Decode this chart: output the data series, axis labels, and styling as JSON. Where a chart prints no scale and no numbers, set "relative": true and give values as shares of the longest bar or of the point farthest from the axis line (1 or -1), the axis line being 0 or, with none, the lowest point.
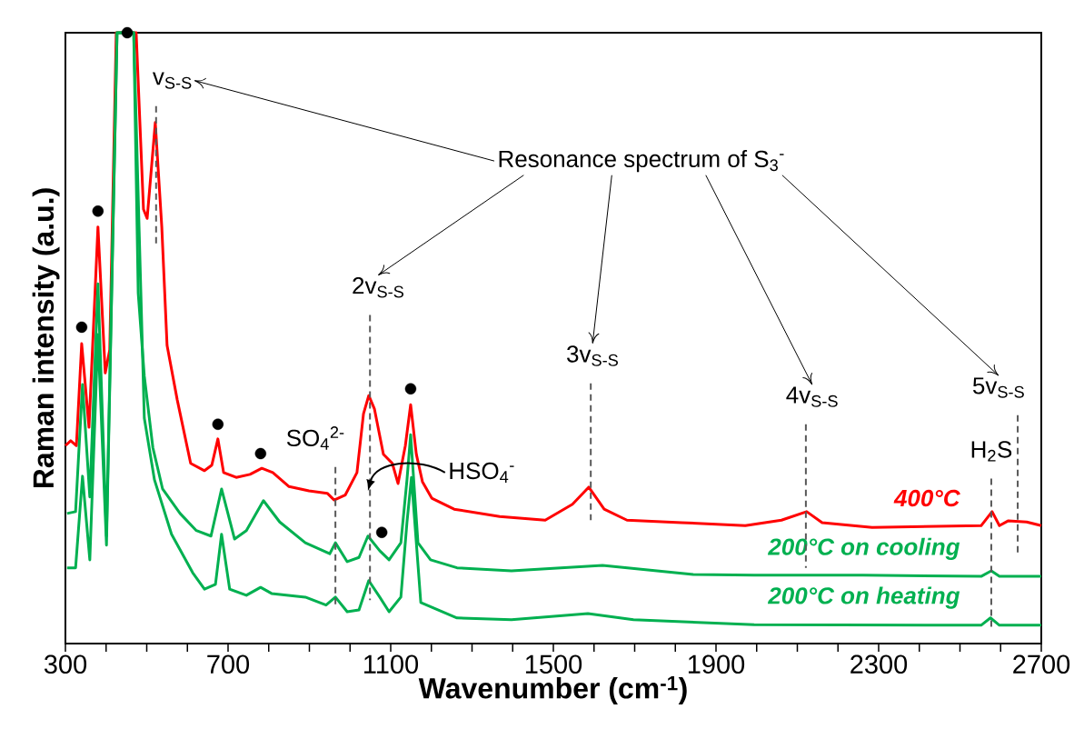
{
  "chart_data": {
    "type": "line",
    "relative": true,
    "xlabel": "Wavenumber (cm$^{-1}$)",
    "ylabel": "Raman intensity (a.u.)",
    "xlim": [
      300,
      2700
    ],
    "xticks": [
      300,
      {
        "value": 400,
        "label": null
      },
      {
        "value": 500,
        "label": null
      },
      {
        "value": 600,
        "label": null
      },
      700,
      {
        "value": 800,
        "label": null
      },
      {
        "value": 900,
        "label": null
      },
      {
        "value": 1000,
        "label": null
      },
      1100,
      {
        "value": 1200,
        "label": null
      },
      {
        "value": 1300,
        "label": null
      },
      {
        "value": 1400,
        "label": null
      },
      1500,
      {
        "value": 1600,
        "label": null
      },
      {
        "value": 1700,
        "label": null
      },
      {
        "value": 1800,
        "label": null
      },
      1900,
      {
        "value": 2000,
        "label": null
      },
      {
        "value": 2100,
        "label": null
      },
      {
        "value": 2200,
        "label": null
      },
      2300,
      {
        "value": 2400,
        "label": null
      },
      {
        "value": 2500,
        "label": null
      },
      {
        "value": 2600,
        "label": null
      },
      2700
    ],
    "legend": false,
    "grid": false,
    "marker": "none",
    "line_style": "solid",
    "series": [
      {
        "name": "400°C",
        "color": "#ff0000",
        "x": [
          300,
          313,
          327,
          340,
          358,
          380,
          398,
          409,
          425,
          474,
          492,
          501,
          521,
          537,
          550,
          575,
          608,
          642,
          660,
          675,
          689,
          720,
          754,
          783,
          810,
          850,
          899,
          944,
          961,
          988,
          1017,
          1033,
          1046,
          1060,
          1082,
          1104,
          1118,
          1136,
          1149,
          1163,
          1178,
          1201,
          1256,
          1368,
          1480,
          1547,
          1587,
          1625,
          1681,
          1815,
          1972,
          2061,
          2123,
          2161,
          2284,
          2552,
          2579,
          2597,
          2619,
          2664,
          2700
        ],
        "values": [
          0.324,
          0.332,
          0.324,
          0.491,
          0.354,
          0.682,
          0.443,
          0.481,
          1.0,
          1.0,
          0.711,
          0.696,
          0.853,
          0.682,
          0.488,
          0.399,
          0.295,
          0.283,
          0.292,
          0.335,
          0.28,
          0.272,
          0.277,
          0.287,
          0.28,
          0.257,
          0.25,
          0.246,
          0.235,
          0.243,
          0.28,
          0.376,
          0.406,
          0.384,
          0.31,
          0.295,
          0.262,
          0.324,
          0.391,
          0.31,
          0.265,
          0.238,
          0.22,
          0.208,
          0.202,
          0.228,
          0.256,
          0.22,
          0.202,
          0.198,
          0.193,
          0.202,
          0.216,
          0.198,
          0.19,
          0.193,
          0.216,
          0.193,
          0.201,
          0.199,
          0.193
        ]
      },
      {
        "name": "200°C on cooling",
        "color": "#00b050",
        "x": [
          304,
          325,
          342,
          360,
          380,
          401,
          427,
          468,
          479,
          494,
          515,
          539,
          582,
          622,
          658,
          684,
          716,
          745,
          787,
          827,
          890,
          950,
          964,
          993,
          1022,
          1044,
          1073,
          1096,
          1125,
          1140,
          1149,
          1167,
          1198,
          1263,
          1397,
          1621,
          1844,
          1994,
          2262,
          2552,
          2577,
          2597,
          2700
        ],
        "values": [
          0.213,
          0.216,
          0.424,
          0.24,
          0.589,
          0.176,
          1.0,
          1.0,
          0.574,
          0.438,
          0.321,
          0.253,
          0.213,
          0.185,
          0.176,
          0.253,
          0.171,
          0.185,
          0.234,
          0.199,
          0.165,
          0.147,
          0.165,
          0.134,
          0.141,
          0.176,
          0.152,
          0.137,
          0.165,
          0.268,
          0.342,
          0.165,
          0.137,
          0.124,
          0.119,
          0.128,
          0.113,
          0.112,
          0.112,
          0.11,
          0.119,
          0.11,
          0.11
        ]
      },
      {
        "name": "200°C on heating",
        "color": "#00b050",
        "x": [
          304,
          325,
          342,
          360,
          380,
          401,
          427,
          468,
          494,
          519,
          561,
          613,
          642,
          669,
          684,
          704,
          745,
          780,
          807,
          890,
          941,
          964,
          993,
          1022,
          1046,
          1073,
          1096,
          1125,
          1140,
          1151,
          1174,
          1263,
          1397,
          1585,
          1697,
          1994,
          2552,
          2575,
          2597,
          2700
        ],
        "values": [
          0.124,
          0.124,
          0.274,
          0.137,
          0.506,
          0.161,
          1.0,
          1.0,
          0.369,
          0.268,
          0.179,
          0.116,
          0.089,
          0.097,
          0.179,
          0.089,
          0.079,
          0.092,
          0.082,
          0.076,
          0.063,
          0.076,
          0.052,
          0.055,
          0.103,
          0.076,
          0.052,
          0.076,
          0.199,
          0.272,
          0.067,
          0.042,
          0.039,
          0.049,
          0.039,
          0.031,
          0.03,
          0.042,
          0.03,
          0.03
        ]
      },
      {
        "type": "scatter",
        "marker": "circle",
        "color": "#000000",
        "x": [
          340,
          380,
          452,
          675,
          780,
          1149,
          1078
        ],
        "values": [
          0.518,
          0.708,
          1.0,
          0.359,
          0.311,
          0.417,
          0.182
        ]
      }
    ],
    "ref_lines": [
      {
        "axis": "x",
        "value": 523,
        "label": "v$_{S-S}$",
        "color": "#595959",
        "line_style": "dashed"
      },
      {
        "axis": "x",
        "value": 1049,
        "label": "2v$_{S-S}$",
        "color": "#595959",
        "line_style": "dashed"
      },
      {
        "axis": "x",
        "value": 1592,
        "label": "3v$_{S-S}$",
        "color": "#595959",
        "line_style": "dashed"
      },
      {
        "axis": "x",
        "value": 2121,
        "label": "4v$_{S-S}$",
        "color": "#595959",
        "line_style": "dashed"
      },
      {
        "axis": "x",
        "value": 2642,
        "label": "5v$_{S-S}$",
        "color": "#595959",
        "line_style": "dashed"
      },
      {
        "axis": "x",
        "value": 2577,
        "label": "H$_{2}$S",
        "color": "#595959",
        "line_style": "dashed"
      },
      {
        "axis": "x",
        "value": 964,
        "label": "SO$_{4}$$^{2-}$",
        "color": "#595959",
        "line_style": "dashed"
      }
    ],
    "annotations": [
      "Resonance spectrum of S$_{3}$$^{-}$",
      "HSO$_{4}$$^{-}$"
    ]
  }
}
